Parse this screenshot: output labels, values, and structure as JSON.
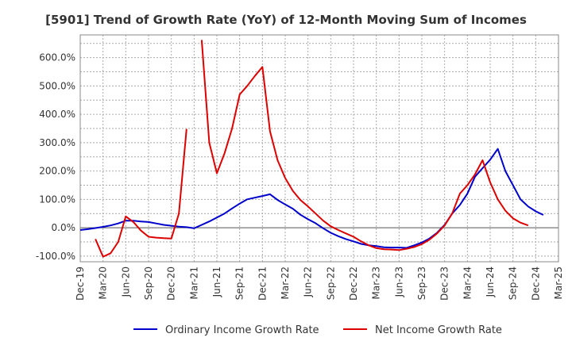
{
  "chart_data": {
    "type": "line",
    "title": "[5901]  Trend of Growth Rate (YoY) of 12-Month Moving Sum of Incomes",
    "xlabel": "",
    "ylabel": "",
    "ylim": [
      -120,
      680
    ],
    "y_ticks": [
      -100,
      0,
      100,
      200,
      300,
      400,
      500,
      600
    ],
    "y_tick_labels": [
      "-100.0%",
      "0.0%",
      "100.0%",
      "200.0%",
      "300.0%",
      "400.0%",
      "500.0%",
      "600.0%"
    ],
    "x_tick_labels": [
      "Dec-19",
      "Mar-20",
      "Jun-20",
      "Sep-20",
      "Dec-20",
      "Mar-21",
      "Jun-21",
      "Sep-21",
      "Dec-21",
      "Mar-22",
      "Jun-22",
      "Sep-22",
      "Dec-22",
      "Mar-23",
      "Jun-23",
      "Sep-23",
      "Dec-23",
      "Mar-24",
      "Jun-24",
      "Sep-24",
      "Dec-24",
      "Mar-25"
    ],
    "x_range": [
      0,
      63
    ],
    "grid": true,
    "legend_position": "bottom",
    "series": [
      {
        "name": "Ordinary Income Growth Rate",
        "color": "#0000cc",
        "points": [
          [
            0,
            -8
          ],
          [
            1,
            -5
          ],
          [
            2,
            -1
          ],
          [
            3,
            3
          ],
          [
            4,
            8
          ],
          [
            5,
            15
          ],
          [
            6,
            25
          ],
          [
            7,
            25
          ],
          [
            8,
            22
          ],
          [
            9,
            20
          ],
          [
            10,
            15
          ],
          [
            11,
            10
          ],
          [
            12,
            7
          ],
          [
            13,
            4
          ],
          [
            14,
            2
          ],
          [
            15,
            -2
          ],
          [
            16,
            10
          ],
          [
            17,
            22
          ],
          [
            18,
            36
          ],
          [
            19,
            50
          ],
          [
            20,
            68
          ],
          [
            21,
            85
          ],
          [
            22,
            100
          ],
          [
            23,
            106
          ],
          [
            24,
            112
          ],
          [
            25,
            118
          ],
          [
            26,
            98
          ],
          [
            27,
            82
          ],
          [
            28,
            67
          ],
          [
            29,
            46
          ],
          [
            30,
            30
          ],
          [
            31,
            16
          ],
          [
            32,
            -2
          ],
          [
            33,
            -18
          ],
          [
            34,
            -30
          ],
          [
            35,
            -40
          ],
          [
            36,
            -48
          ],
          [
            37,
            -57
          ],
          [
            38,
            -62
          ],
          [
            39,
            -65
          ],
          [
            40,
            -69
          ],
          [
            41,
            -70
          ],
          [
            42,
            -70
          ],
          [
            43,
            -71
          ],
          [
            44,
            -62
          ],
          [
            45,
            -52
          ],
          [
            46,
            -38
          ],
          [
            47,
            -18
          ],
          [
            48,
            10
          ],
          [
            49,
            50
          ],
          [
            50,
            80
          ],
          [
            51,
            120
          ],
          [
            52,
            180
          ],
          [
            53,
            210
          ],
          [
            54,
            240
          ],
          [
            55,
            278
          ],
          [
            56,
            200
          ],
          [
            57,
            150
          ],
          [
            58,
            100
          ],
          [
            59,
            75
          ],
          [
            60,
            58
          ],
          [
            61,
            45
          ]
        ]
      },
      {
        "name": "Net Income Growth Rate",
        "color": "#dd0000",
        "segments": [
          [
            [
              2,
              -40
            ],
            [
              3,
              -102
            ],
            [
              4,
              -90
            ],
            [
              5,
              -50
            ],
            [
              6,
              40
            ],
            [
              7,
              20
            ],
            [
              8,
              -10
            ],
            [
              9,
              -32
            ],
            [
              10,
              -35
            ],
            [
              11,
              -37
            ],
            [
              12,
              -38
            ],
            [
              13,
              50
            ],
            [
              14,
              348
            ]
          ],
          [
            [
              16,
              662
            ],
            [
              17,
              300
            ],
            [
              18,
              192
            ],
            [
              19,
              262
            ],
            [
              20,
              350
            ],
            [
              21,
              470
            ],
            [
              22,
              500
            ],
            [
              23,
              535
            ],
            [
              24,
              567
            ],
            [
              25,
              340
            ],
            [
              26,
              238
            ],
            [
              27,
              175
            ],
            [
              28,
              130
            ],
            [
              29,
              98
            ],
            [
              30,
              75
            ],
            [
              31,
              50
            ],
            [
              32,
              25
            ],
            [
              33,
              5
            ],
            [
              34,
              -8
            ],
            [
              35,
              -20
            ],
            [
              36,
              -32
            ],
            [
              37,
              -48
            ],
            [
              38,
              -62
            ],
            [
              39,
              -72
            ],
            [
              40,
              -76
            ],
            [
              41,
              -77
            ],
            [
              42,
              -79
            ],
            [
              43,
              -74
            ],
            [
              44,
              -68
            ],
            [
              45,
              -58
            ],
            [
              46,
              -42
            ],
            [
              47,
              -20
            ],
            [
              48,
              8
            ],
            [
              49,
              50
            ],
            [
              50,
              120
            ],
            [
              51,
              150
            ],
            [
              52,
              188
            ],
            [
              53,
              238
            ],
            [
              54,
              160
            ],
            [
              55,
              100
            ],
            [
              56,
              60
            ],
            [
              57,
              33
            ],
            [
              58,
              18
            ],
            [
              59,
              8
            ]
          ]
        ]
      }
    ]
  }
}
